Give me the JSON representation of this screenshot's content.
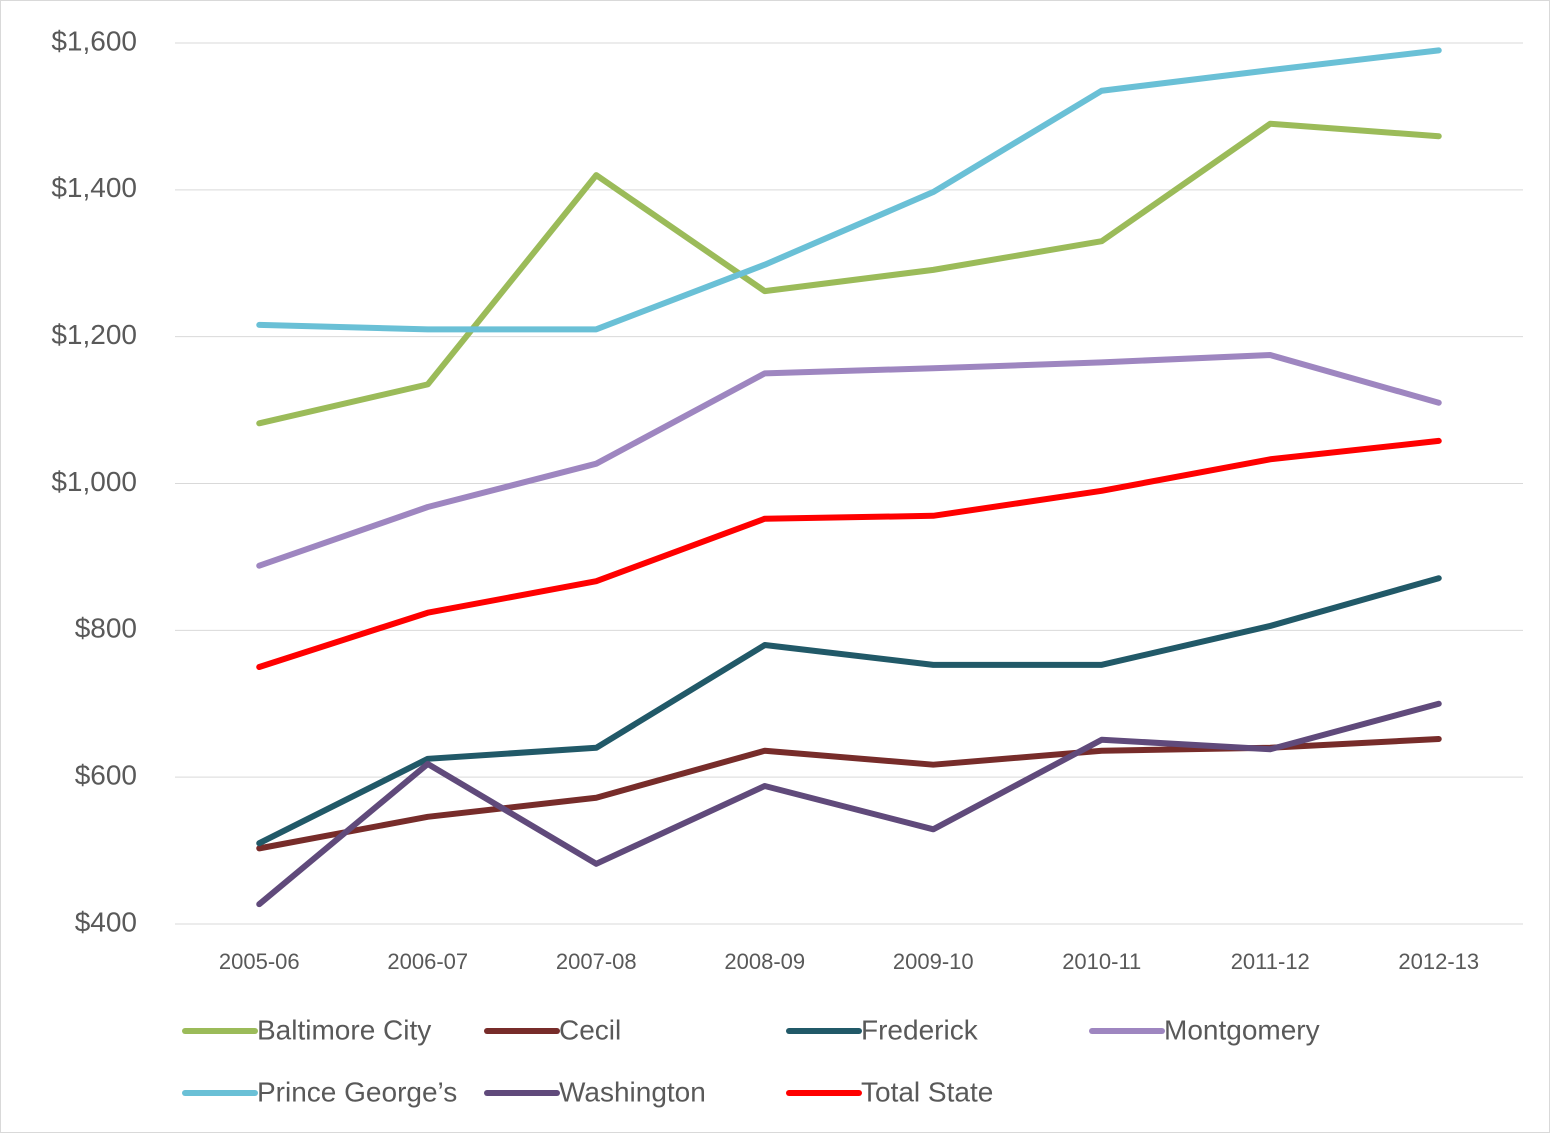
{
  "chart_data": {
    "type": "line",
    "categories": [
      "2005-06",
      "2006-07",
      "2007-08",
      "2008-09",
      "2009-10",
      "2010-11",
      "2011-12",
      "2012-13"
    ],
    "series": [
      {
        "name": "Baltimore City",
        "color": "#9bbb59",
        "values": [
          1082,
          1135,
          1420,
          1262,
          1291,
          1330,
          1490,
          1473
        ]
      },
      {
        "name": "Cecil",
        "color": "#772c2a",
        "values": [
          503,
          546,
          572,
          636,
          617,
          636,
          640,
          652
        ]
      },
      {
        "name": "Frederick",
        "color": "#215968",
        "values": [
          510,
          625,
          640,
          780,
          753,
          753,
          806,
          871
        ]
      },
      {
        "name": "Montgomery",
        "color": "#9e86c0",
        "values": [
          888,
          968,
          1027,
          1150,
          1157,
          1165,
          1175,
          1110
        ]
      },
      {
        "name": "Prince George’s",
        "color": "#6ac0d6",
        "values": [
          1216,
          1210,
          1210,
          1298,
          1397,
          1535,
          1563,
          1590
        ]
      },
      {
        "name": "Washington",
        "color": "#604a7b",
        "values": [
          427,
          618,
          482,
          588,
          529,
          651,
          638,
          700
        ]
      },
      {
        "name": "Total State",
        "color": "#ff0000",
        "values": [
          750,
          824,
          867,
          952,
          956,
          990,
          1033,
          1058
        ]
      }
    ],
    "ylim": [
      400,
      1600
    ],
    "yticks": [
      {
        "value": 400,
        "label": "$400"
      },
      {
        "value": 600,
        "label": "$600"
      },
      {
        "value": 800,
        "label": "$800"
      },
      {
        "value": 1000,
        "label": "$1,000"
      },
      {
        "value": 1200,
        "label": "$1,200"
      },
      {
        "value": 1400,
        "label": "$1,400"
      },
      {
        "value": 1600,
        "label": "$1,600"
      }
    ],
    "grid": true
  }
}
